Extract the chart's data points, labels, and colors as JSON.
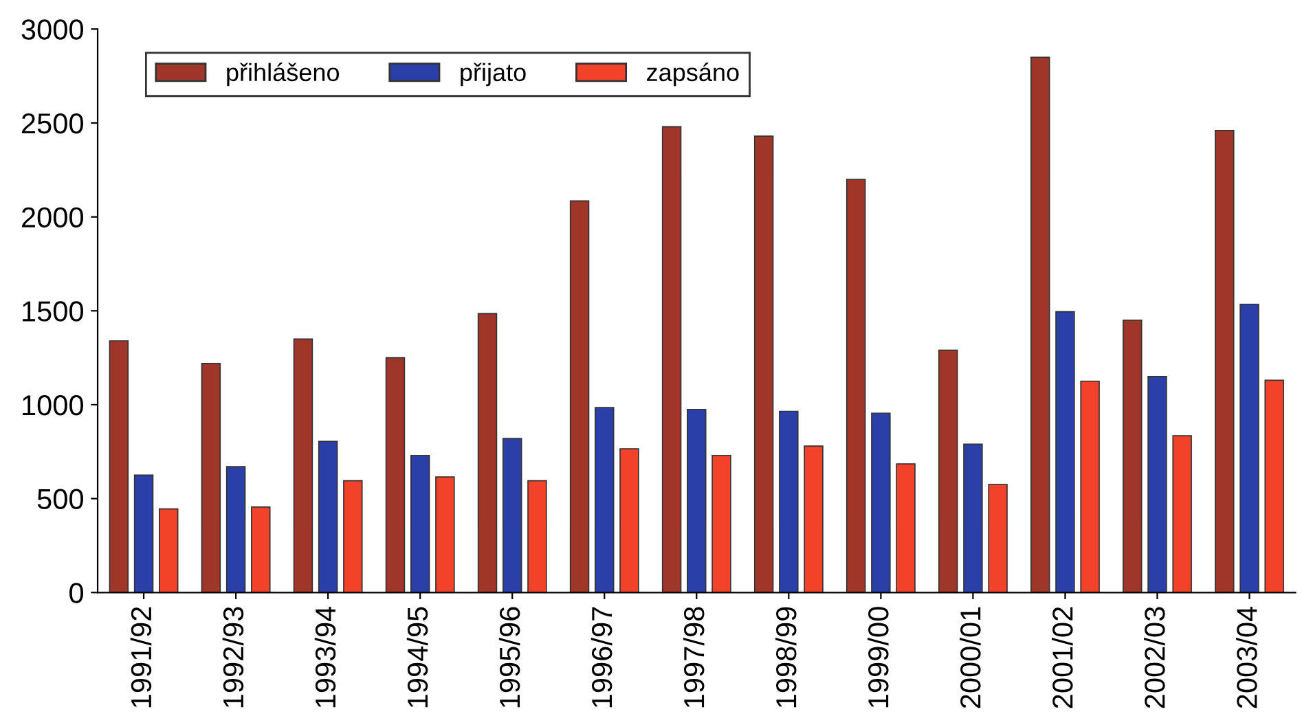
{
  "chart_data": {
    "type": "bar",
    "categories": [
      "1991/92",
      "1992/93",
      "1993/94",
      "1994/95",
      "1995/96",
      "1996/97",
      "1997/98",
      "1998/99",
      "1999/00",
      "2000/01",
      "2001/02",
      "2002/03",
      "2003/04"
    ],
    "series": [
      {
        "name": "přihlášeno",
        "color": "#a0352a",
        "values": [
          1340,
          1220,
          1350,
          1250,
          1485,
          2085,
          2480,
          2430,
          2200,
          1290,
          2850,
          1450,
          2460
        ]
      },
      {
        "name": "přijato",
        "color": "#2a3fa8",
        "values": [
          625,
          670,
          805,
          730,
          820,
          985,
          975,
          965,
          955,
          790,
          1495,
          1150,
          1535
        ]
      },
      {
        "name": "zapsáno",
        "color": "#f2422a",
        "values": [
          445,
          455,
          595,
          615,
          595,
          765,
          730,
          780,
          685,
          575,
          1125,
          835,
          1130
        ]
      }
    ],
    "ylim": [
      0,
      3000
    ],
    "yticks": [
      0,
      500,
      1000,
      1500,
      2000,
      2500,
      3000
    ],
    "grid": false,
    "legend": "top left"
  }
}
